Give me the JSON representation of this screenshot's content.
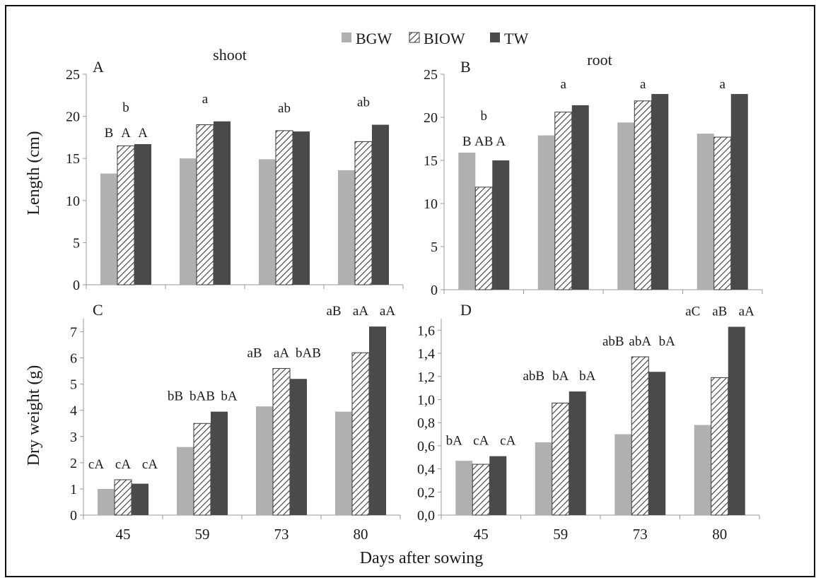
{
  "legend": {
    "position": "top-center",
    "items": [
      {
        "label": "BGW",
        "style": "light-gray"
      },
      {
        "label": "BIOW",
        "style": "hatched"
      },
      {
        "label": "TW",
        "style": "dark-gray"
      }
    ]
  },
  "colors": {
    "BGW": "#b0b0b0",
    "BIOW_stroke": "#3a3a3a",
    "TW": "#4a4a4a",
    "axis": "#999999",
    "frame": "#111111"
  },
  "figure": {
    "ylabel_top": "Length (cm)",
    "ylabel_bottom": "Dry weight (g)",
    "xlabel": "Days after sowing",
    "x_ticks": [
      "45",
      "59",
      "73",
      "80"
    ]
  },
  "chart_data": [
    {
      "panel": "A",
      "title": "shoot",
      "type": "bar",
      "categories": [
        "45",
        "59",
        "73",
        "80"
      ],
      "ylim": [
        0,
        25
      ],
      "yticks": [
        "0",
        "5",
        "10",
        "15",
        "20",
        "25"
      ],
      "series": [
        {
          "name": "BGW",
          "values": [
            13.2,
            15.0,
            14.9,
            13.6
          ]
        },
        {
          "name": "BIOW",
          "values": [
            16.5,
            19.0,
            18.3,
            17.0
          ]
        },
        {
          "name": "TW",
          "values": [
            16.7,
            19.4,
            18.2,
            19.0
          ]
        }
      ],
      "group_labels": [
        "b",
        "a",
        "ab",
        "ab"
      ],
      "bar_labels": [
        [
          "B",
          "A",
          "A"
        ],
        [
          "",
          "",
          ""
        ],
        [
          "",
          "",
          ""
        ],
        [
          "",
          "",
          ""
        ]
      ]
    },
    {
      "panel": "B",
      "title": "root",
      "type": "bar",
      "categories": [
        "45",
        "59",
        "73",
        "80"
      ],
      "ylim": [
        0,
        25
      ],
      "yticks": [
        "0",
        "5",
        "10",
        "15",
        "20",
        "25"
      ],
      "series": [
        {
          "name": "BGW",
          "values": [
            15.9,
            17.9,
            19.4,
            18.1
          ]
        },
        {
          "name": "BIOW",
          "values": [
            11.9,
            20.6,
            21.9,
            17.7
          ]
        },
        {
          "name": "TW",
          "values": [
            15.0,
            21.4,
            22.7,
            22.7
          ]
        }
      ],
      "group_labels": [
        "b",
        "a",
        "a",
        "a"
      ],
      "bar_labels": [
        [
          "B",
          "AB",
          "A"
        ],
        [
          "",
          "",
          ""
        ],
        [
          "",
          "",
          ""
        ],
        [
          "",
          "",
          ""
        ]
      ]
    },
    {
      "panel": "C",
      "title": "",
      "type": "bar",
      "categories": [
        "45",
        "59",
        "73",
        "80"
      ],
      "ylim": [
        0,
        7.5
      ],
      "yticks": [
        "0",
        "1",
        "2",
        "3",
        "4",
        "5",
        "6",
        "7"
      ],
      "series": [
        {
          "name": "BGW",
          "values": [
            1.0,
            2.6,
            4.15,
            3.95
          ]
        },
        {
          "name": "BIOW",
          "values": [
            1.35,
            3.5,
            5.6,
            6.2
          ]
        },
        {
          "name": "TW",
          "values": [
            1.2,
            3.95,
            5.2,
            7.2
          ]
        }
      ],
      "group_labels": [
        "",
        "",
        "",
        ""
      ],
      "bar_labels": [
        [
          "cA",
          "cA",
          "cA"
        ],
        [
          "bB",
          "bAB",
          "bA"
        ],
        [
          "aB",
          "aA",
          "bAB"
        ],
        [
          "aB",
          "aA",
          "aA"
        ]
      ]
    },
    {
      "panel": "D",
      "title": "",
      "type": "bar",
      "categories": [
        "45",
        "59",
        "73",
        "80"
      ],
      "ylim": [
        0,
        1.7
      ],
      "yticks": [
        "0,0",
        "0,2",
        "0,4",
        "0,6",
        "0,8",
        "1,0",
        "1,2",
        "1,4",
        "1,6"
      ],
      "series": [
        {
          "name": "BGW",
          "values": [
            0.47,
            0.63,
            0.7,
            0.78
          ]
        },
        {
          "name": "BIOW",
          "values": [
            0.44,
            0.97,
            1.37,
            1.19
          ]
        },
        {
          "name": "TW",
          "values": [
            0.51,
            1.07,
            1.24,
            1.63
          ]
        }
      ],
      "group_labels": [
        "",
        "",
        "",
        ""
      ],
      "bar_labels": [
        [
          "bA",
          "cA",
          "cA"
        ],
        [
          "abB",
          "bA",
          "bA"
        ],
        [
          "abB",
          "abA",
          "bA"
        ],
        [
          "aC",
          "aB",
          "aA"
        ]
      ]
    }
  ]
}
